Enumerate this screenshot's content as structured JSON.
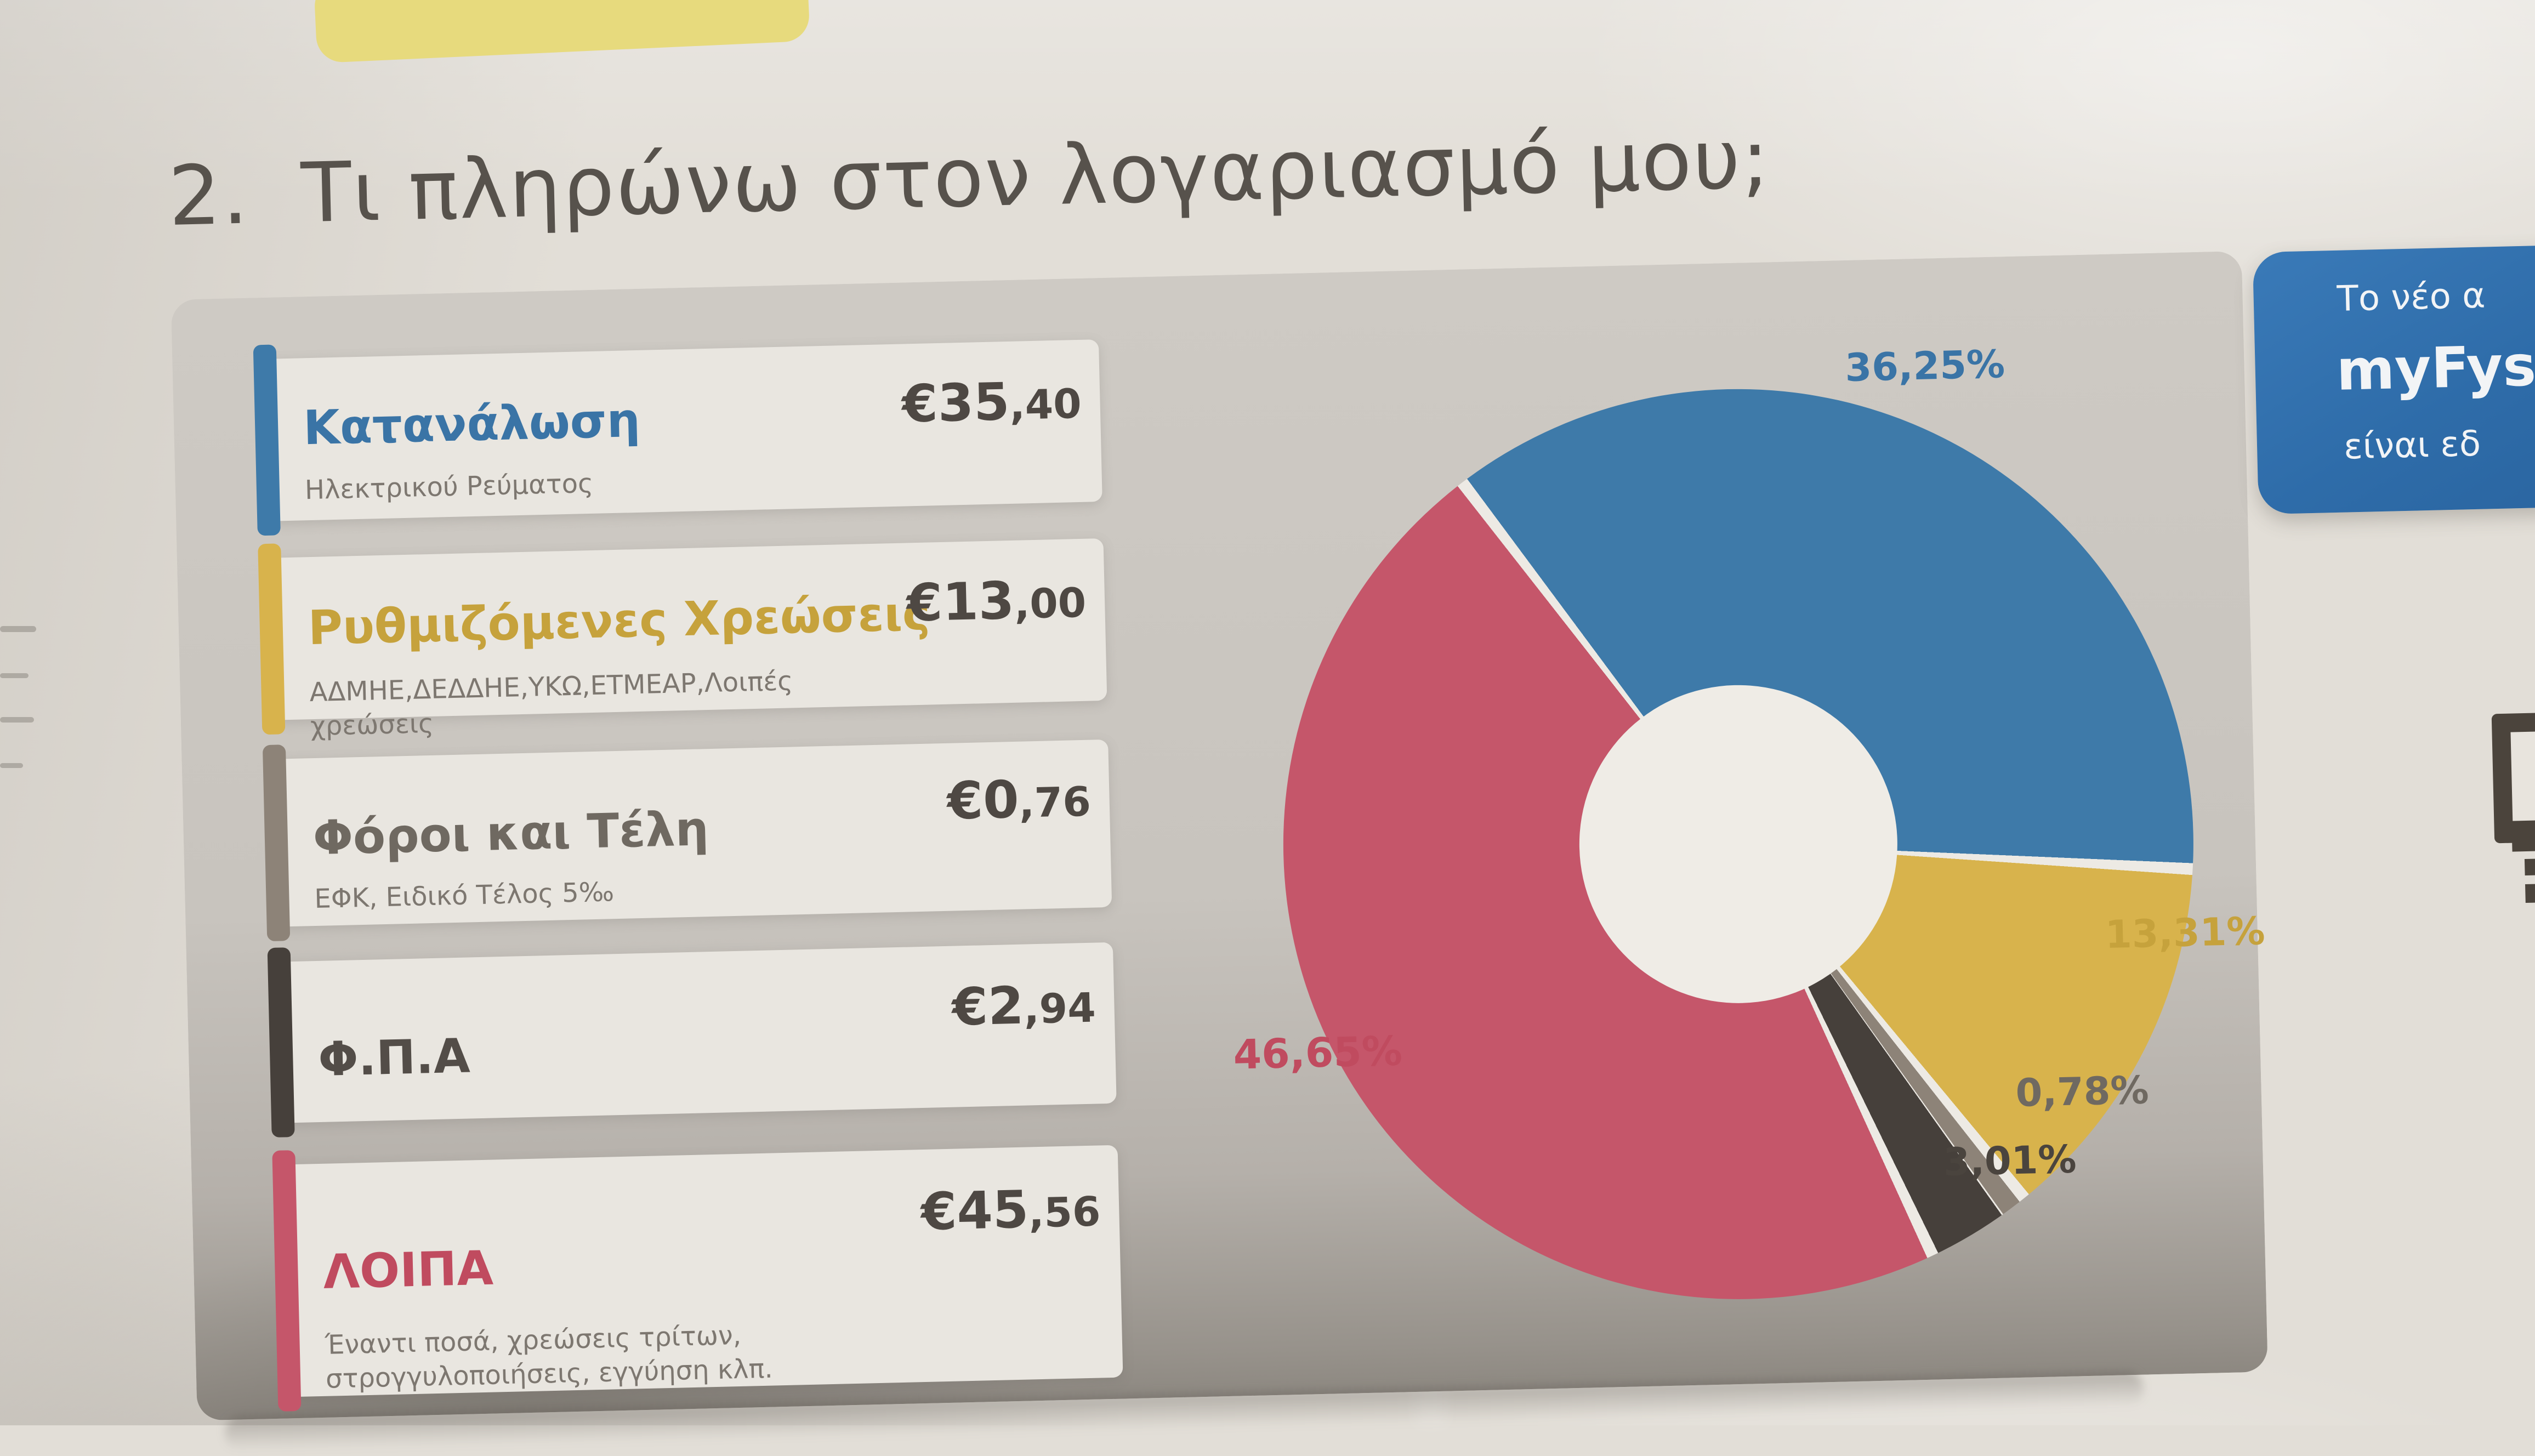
{
  "header": {
    "number": "2.",
    "title": "Τι πληρώνω στον λογαριασμό μου;"
  },
  "legend": {
    "items": [
      {
        "name": "Κατανάλωση",
        "subtitle": "Ηλεκτρικού Ρεύματος",
        "amount": "€35,40",
        "amount_main": "€35",
        "amount_cents": ",40",
        "color": "#3e7aa9",
        "text_color": "#3a74a6"
      },
      {
        "name": "Ρυθμιζόμενες Χρεώσεις",
        "subtitle": "ΑΔΜΗΕ,ΔΕΔΔΗΕ,ΥΚΩ,ΕΤΜΕΑΡ,Λοιπές χρεώσεις",
        "amount": "€13,00",
        "amount_main": "€13",
        "amount_cents": ",00",
        "color": "#d8b34c",
        "text_color": "#c6a23c"
      },
      {
        "name": "Φόροι και Τέλη",
        "subtitle": "ΕΦΚ, Ειδικό Τέλος 5‰",
        "amount": "€0,76",
        "amount_main": "€0",
        "amount_cents": ",76",
        "color": "#8d8378",
        "text_color": "#6f6961"
      },
      {
        "name": "Φ.Π.Α",
        "subtitle": "",
        "amount": "€2,94",
        "amount_main": "€2",
        "amount_cents": ",94",
        "color": "#46403b",
        "text_color": "#534d48"
      },
      {
        "name": "ΛΟΙΠΑ",
        "subtitle": "Έναντι ποσά, χρεώσεις τρίτων, στρογγυλοποιήσεις, εγγύηση κλπ.",
        "amount": "€45,56",
        "amount_main": "€45",
        "amount_cents": ",56",
        "color": "#c5566a",
        "text_color": "#c04b5f"
      }
    ]
  },
  "chart_data": {
    "type": "pie",
    "donut": true,
    "title": "Τι πληρώνω στον λογαριασμό μου;",
    "categories": [
      "Κατανάλωση Ηλεκτρικού Ρεύματος",
      "Ρυθμιζόμενες Χρεώσεις",
      "Φόροι και Τέλη",
      "Φ.Π.Α",
      "ΛΟΙΠΑ"
    ],
    "values_percent": [
      36.25,
      13.31,
      0.78,
      3.01,
      46.65
    ],
    "values_eur": [
      35.4,
      13.0,
      0.76,
      2.94,
      45.56
    ],
    "labels": [
      "36,25%",
      "13,31%",
      "0,78%",
      "3,01%",
      "46,65%"
    ],
    "colors": [
      "#3e7aa9",
      "#d8b34c",
      "#8d8378",
      "#46403b",
      "#c5566a"
    ],
    "label_colors": [
      "#3a74a6",
      "#c6a23c",
      "#6f6961",
      "#4a443e",
      "#c04b5f"
    ],
    "gap_color": "#edeae4",
    "start_angle_deg": -36,
    "legend_position": "left",
    "currency": "EUR"
  },
  "banner": {
    "line1": "Το νέο α",
    "line2": "myFysi",
    "line3": "είναι εδ",
    "bg_color": "#2e6ca9"
  }
}
